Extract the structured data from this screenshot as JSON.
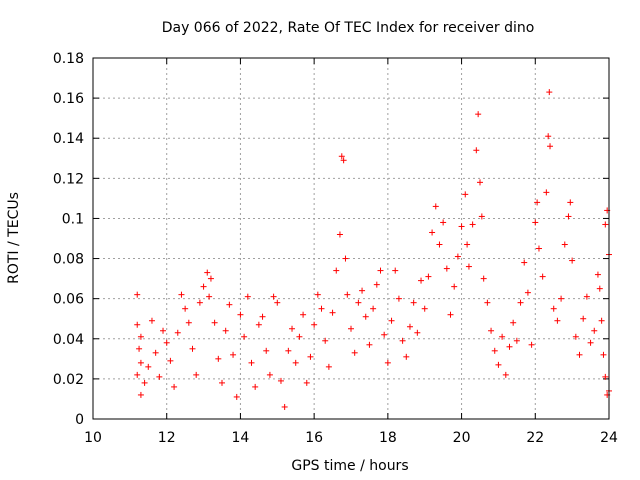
{
  "chart_data": {
    "type": "scatter",
    "title": "Day 066 of 2022, Rate Of TEC Index for receiver dino",
    "xlabel": "GPS time / hours",
    "ylabel": "ROTI / TECUs",
    "xlim": [
      10,
      24
    ],
    "ylim": [
      0,
      0.18
    ],
    "xticks": [
      10,
      12,
      14,
      16,
      18,
      20,
      22,
      24
    ],
    "xtick_labels": [
      "10",
      "12",
      "14",
      "16",
      "18",
      "20",
      "22",
      "24"
    ],
    "yticks": [
      0,
      0.02,
      0.04,
      0.06,
      0.08,
      0.1,
      0.12,
      0.14,
      0.16,
      0.18
    ],
    "ytick_labels": [
      "0",
      "0.02",
      "0.04",
      "0.06",
      "0.08",
      "0.1",
      "0.12",
      "0.14",
      "0.16",
      "0.18"
    ],
    "grid": true,
    "marker": "+",
    "color": "#ff0000",
    "series": [
      {
        "name": "ROTI",
        "points": [
          [
            11.2,
            0.062
          ],
          [
            11.2,
            0.047
          ],
          [
            11.3,
            0.041
          ],
          [
            11.25,
            0.035
          ],
          [
            11.3,
            0.028
          ],
          [
            11.2,
            0.022
          ],
          [
            11.4,
            0.018
          ],
          [
            11.3,
            0.012
          ],
          [
            11.5,
            0.026
          ],
          [
            11.6,
            0.049
          ],
          [
            11.7,
            0.033
          ],
          [
            11.8,
            0.021
          ],
          [
            11.9,
            0.044
          ],
          [
            12.0,
            0.038
          ],
          [
            12.1,
            0.029
          ],
          [
            12.2,
            0.016
          ],
          [
            12.3,
            0.043
          ],
          [
            12.4,
            0.062
          ],
          [
            12.5,
            0.055
          ],
          [
            12.6,
            0.048
          ],
          [
            12.7,
            0.035
          ],
          [
            12.8,
            0.022
          ],
          [
            12.9,
            0.058
          ],
          [
            13.0,
            0.066
          ],
          [
            13.1,
            0.073
          ],
          [
            13.2,
            0.07
          ],
          [
            13.15,
            0.061
          ],
          [
            13.3,
            0.048
          ],
          [
            13.4,
            0.03
          ],
          [
            13.5,
            0.018
          ],
          [
            13.6,
            0.044
          ],
          [
            13.7,
            0.057
          ],
          [
            13.8,
            0.032
          ],
          [
            13.9,
            0.011
          ],
          [
            14.0,
            0.052
          ],
          [
            14.1,
            0.041
          ],
          [
            14.2,
            0.061
          ],
          [
            14.3,
            0.028
          ],
          [
            14.4,
            0.016
          ],
          [
            14.5,
            0.047
          ],
          [
            14.6,
            0.051
          ],
          [
            14.7,
            0.034
          ],
          [
            14.8,
            0.022
          ],
          [
            14.9,
            0.061
          ],
          [
            15.0,
            0.058
          ],
          [
            15.1,
            0.019
          ],
          [
            15.2,
            0.006
          ],
          [
            15.3,
            0.034
          ],
          [
            15.4,
            0.045
          ],
          [
            15.5,
            0.028
          ],
          [
            15.6,
            0.041
          ],
          [
            15.7,
            0.052
          ],
          [
            15.8,
            0.018
          ],
          [
            15.9,
            0.031
          ],
          [
            16.0,
            0.047
          ],
          [
            16.1,
            0.062
          ],
          [
            16.2,
            0.055
          ],
          [
            16.3,
            0.039
          ],
          [
            16.4,
            0.026
          ],
          [
            16.5,
            0.053
          ],
          [
            16.6,
            0.074
          ],
          [
            16.7,
            0.092
          ],
          [
            16.75,
            0.131
          ],
          [
            16.8,
            0.129
          ],
          [
            16.85,
            0.08
          ],
          [
            16.9,
            0.062
          ],
          [
            17.0,
            0.045
          ],
          [
            17.1,
            0.033
          ],
          [
            17.2,
            0.058
          ],
          [
            17.3,
            0.064
          ],
          [
            17.4,
            0.051
          ],
          [
            17.5,
            0.037
          ],
          [
            17.6,
            0.055
          ],
          [
            17.7,
            0.067
          ],
          [
            17.8,
            0.074
          ],
          [
            17.9,
            0.042
          ],
          [
            18.0,
            0.028
          ],
          [
            18.1,
            0.049
          ],
          [
            18.2,
            0.074
          ],
          [
            18.3,
            0.06
          ],
          [
            18.4,
            0.039
          ],
          [
            18.5,
            0.031
          ],
          [
            18.6,
            0.046
          ],
          [
            18.7,
            0.058
          ],
          [
            18.8,
            0.043
          ],
          [
            18.9,
            0.069
          ],
          [
            19.0,
            0.055
          ],
          [
            19.1,
            0.071
          ],
          [
            19.2,
            0.093
          ],
          [
            19.3,
            0.106
          ],
          [
            19.4,
            0.087
          ],
          [
            19.5,
            0.098
          ],
          [
            19.6,
            0.075
          ],
          [
            19.7,
            0.052
          ],
          [
            19.8,
            0.066
          ],
          [
            19.9,
            0.081
          ],
          [
            20.0,
            0.096
          ],
          [
            20.1,
            0.112
          ],
          [
            20.15,
            0.087
          ],
          [
            20.2,
            0.076
          ],
          [
            20.3,
            0.097
          ],
          [
            20.4,
            0.134
          ],
          [
            20.45,
            0.152
          ],
          [
            20.5,
            0.118
          ],
          [
            20.55,
            0.101
          ],
          [
            20.6,
            0.07
          ],
          [
            20.7,
            0.058
          ],
          [
            20.8,
            0.044
          ],
          [
            20.9,
            0.034
          ],
          [
            21.0,
            0.027
          ],
          [
            21.1,
            0.041
          ],
          [
            21.2,
            0.022
          ],
          [
            21.3,
            0.036
          ],
          [
            21.4,
            0.048
          ],
          [
            21.5,
            0.039
          ],
          [
            21.6,
            0.058
          ],
          [
            21.7,
            0.078
          ],
          [
            21.8,
            0.063
          ],
          [
            21.9,
            0.037
          ],
          [
            22.0,
            0.098
          ],
          [
            22.05,
            0.108
          ],
          [
            22.1,
            0.085
          ],
          [
            22.2,
            0.071
          ],
          [
            22.3,
            0.113
          ],
          [
            22.35,
            0.141
          ],
          [
            22.38,
            0.163
          ],
          [
            22.4,
            0.136
          ],
          [
            22.5,
            0.055
          ],
          [
            22.6,
            0.049
          ],
          [
            22.7,
            0.06
          ],
          [
            22.8,
            0.087
          ],
          [
            22.9,
            0.101
          ],
          [
            22.95,
            0.108
          ],
          [
            23.0,
            0.079
          ],
          [
            23.1,
            0.041
          ],
          [
            23.2,
            0.032
          ],
          [
            23.3,
            0.05
          ],
          [
            23.4,
            0.061
          ],
          [
            23.5,
            0.038
          ],
          [
            23.6,
            0.044
          ],
          [
            23.7,
            0.072
          ],
          [
            23.75,
            0.065
          ],
          [
            23.8,
            0.049
          ],
          [
            23.85,
            0.032
          ],
          [
            23.9,
            0.097
          ],
          [
            23.95,
            0.104
          ],
          [
            24.0,
            0.082
          ],
          [
            23.9,
            0.021
          ],
          [
            23.95,
            0.012
          ],
          [
            24.0,
            0.014
          ]
        ]
      }
    ]
  }
}
